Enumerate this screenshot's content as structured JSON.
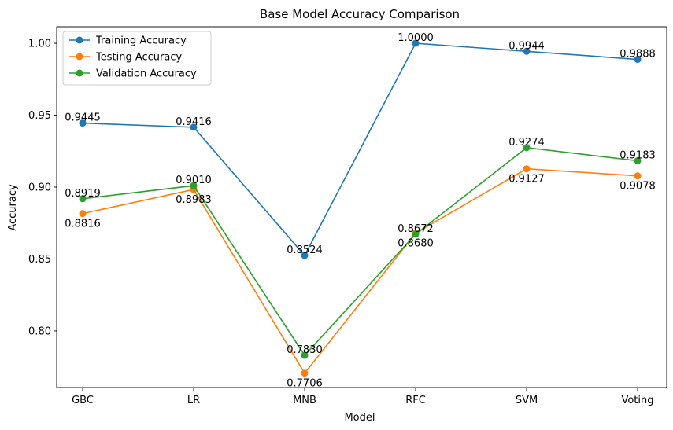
{
  "chart_data": {
    "type": "line",
    "title": "Base Model Accuracy Comparison",
    "xlabel": "Model",
    "ylabel": "Accuracy",
    "categories": [
      "GBC",
      "LR",
      "MNB",
      "RFC",
      "SVM",
      "Voting"
    ],
    "ylim": [
      0.7606,
      1.0115
    ],
    "yticks": [
      0.8,
      0.85,
      0.9,
      0.95,
      1.0
    ],
    "ytick_labels": [
      "0.80",
      "0.85",
      "0.90",
      "0.95",
      "1.00"
    ],
    "grid": false,
    "legend_position": "top-left",
    "series": [
      {
        "name": "Training Accuracy",
        "color": "#1f77b4",
        "values": [
          0.9445,
          0.9416,
          0.8524,
          1.0,
          0.9944,
          0.9888
        ],
        "labels": [
          "0.9445",
          "0.9416",
          "0.8524",
          "1.0000",
          "0.9944",
          "0.9888"
        ],
        "label_side": [
          "above",
          "above",
          "above",
          "above",
          "above",
          "above"
        ]
      },
      {
        "name": "Testing Accuracy",
        "color": "#ff7f0e",
        "values": [
          0.8816,
          0.8983,
          0.7706,
          0.868,
          0.9127,
          0.9078
        ],
        "labels": [
          "0.8816",
          "0.8983",
          "0.7706",
          "0.8680",
          "0.9127",
          "0.9078"
        ],
        "label_side": [
          "below",
          "below",
          "below",
          "below",
          "below",
          "below"
        ]
      },
      {
        "name": "Validation Accuracy",
        "color": "#2ca02c",
        "values": [
          0.8919,
          0.901,
          0.783,
          0.8672,
          0.9274,
          0.9183
        ],
        "labels": [
          "0.8919",
          "0.9010",
          "0.7830",
          "0.8672",
          "0.9274",
          "0.9183"
        ],
        "label_side": [
          "above",
          "above",
          "above",
          "above",
          "above",
          "above"
        ]
      }
    ]
  }
}
